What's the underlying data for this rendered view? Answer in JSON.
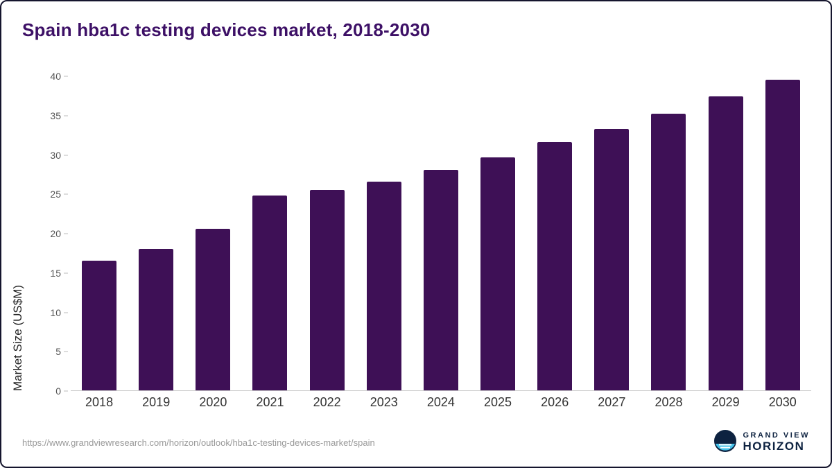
{
  "chart_data": {
    "type": "bar",
    "title": "Spain hba1c testing devices market, 2018-2030",
    "categories": [
      "2018",
      "2019",
      "2020",
      "2021",
      "2022",
      "2023",
      "2024",
      "2025",
      "2026",
      "2027",
      "2028",
      "2029",
      "2030"
    ],
    "values": [
      16.5,
      18.0,
      20.6,
      24.8,
      25.5,
      26.6,
      28.1,
      29.7,
      31.6,
      33.3,
      35.2,
      37.4,
      39.6
    ],
    "xlabel": "",
    "ylabel": "Market Size (US$M)",
    "ylim": [
      0,
      40
    ],
    "yticks": [
      0,
      5,
      10,
      15,
      20,
      25,
      30,
      35,
      40
    ],
    "bar_color": "#3e1056",
    "grid": "off",
    "legend": "none"
  },
  "footer": {
    "source_url": "https://www.grandviewresearch.com/horizon/outlook/hba1c-testing-devices-market/spain",
    "brand_top": "GRAND VIEW",
    "brand_bottom": "HORIZON",
    "logo_icon": "horizon-sun-icon",
    "brand_color": "#0d2240",
    "logo_accent": "#45c2ea"
  }
}
